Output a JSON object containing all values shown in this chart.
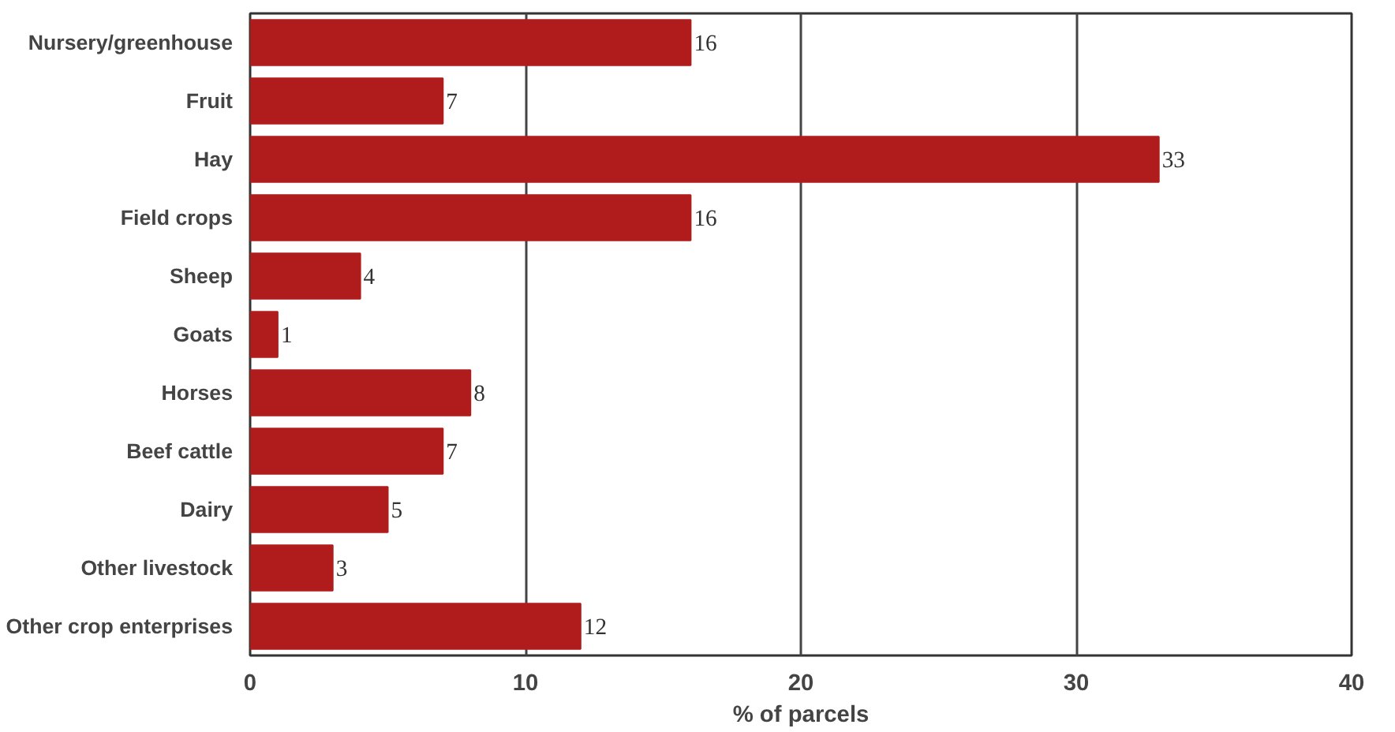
{
  "chart_data": {
    "type": "bar",
    "orientation": "horizontal",
    "xlabel": "% of parcels",
    "categories": [
      "Nursery/greenhouse",
      "Fruit",
      "Hay",
      "Field crops",
      "Sheep",
      "Goats",
      "Horses",
      "Beef cattle",
      "Dairy",
      "Other livestock",
      "Other crop enterprises"
    ],
    "values": [
      16,
      7,
      33,
      16,
      4,
      1,
      8,
      7,
      5,
      3,
      12
    ],
    "color": "#b01c1c",
    "xlim": [
      0,
      40
    ],
    "xticks": [
      0,
      10,
      20,
      30,
      40
    ],
    "grid": "x",
    "data_labels": true
  }
}
